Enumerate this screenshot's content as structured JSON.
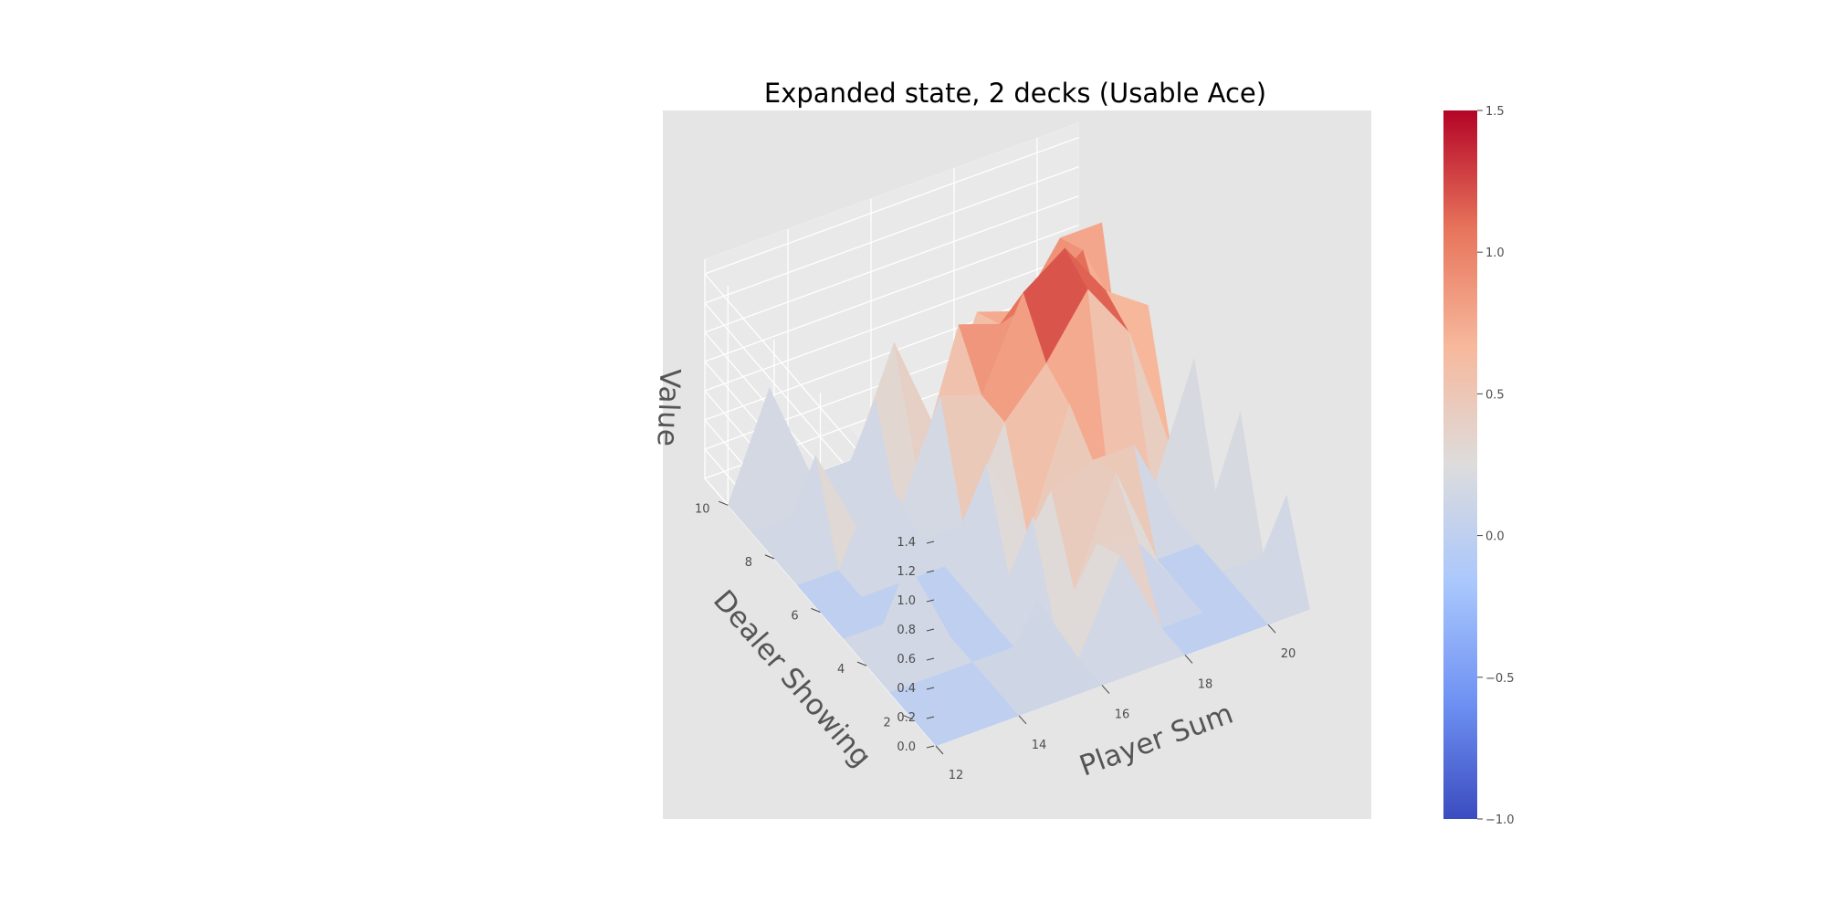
{
  "chart_data": {
    "type": "surface3d",
    "title": "Expanded state, 2 decks (Usable Ace)",
    "xlabel": "Player Sum",
    "ylabel": "Dealer Showing",
    "zlabel": "Value",
    "x_ticks": [
      "12",
      "14",
      "16",
      "18",
      "20"
    ],
    "y_ticks": [
      "2",
      "4",
      "6",
      "8",
      "10"
    ],
    "z_ticks": [
      "0.0",
      "0.2",
      "0.4",
      "0.6",
      "0.8",
      "1.0",
      "1.2",
      "1.4"
    ],
    "xlim": [
      12,
      21
    ],
    "ylim": [
      1,
      11
    ],
    "zlim": [
      0,
      1.5
    ],
    "grid": true,
    "colormap": "coolwarm",
    "colorbar": {
      "vmin": -1.0,
      "vmax": 1.5,
      "ticks": [
        "−1.0",
        "−0.5",
        "0.0",
        "0.5",
        "1.0",
        "1.5"
      ],
      "colors": [
        "#3b4cc0",
        "#6f92f3",
        "#aac7fd",
        "#dddcdc",
        "#f7b89c",
        "#e7745b",
        "#b40426"
      ]
    },
    "x": [
      12,
      13,
      14,
      15,
      16,
      17,
      18,
      19,
      20,
      21
    ],
    "y": [
      1,
      2,
      3,
      4,
      5,
      6,
      7,
      8,
      9,
      10
    ],
    "z": [
      [
        0,
        0,
        0,
        0,
        0,
        0,
        0,
        0,
        0,
        0
      ],
      [
        0,
        0,
        0,
        0.5,
        0,
        0.6,
        0,
        0,
        0,
        0.6
      ],
      [
        0,
        0,
        0,
        0,
        0,
        0.5,
        0.4,
        0,
        0,
        0
      ],
      [
        0,
        0.6,
        0,
        0,
        0.6,
        0,
        0.7,
        0,
        0,
        0.8
      ],
      [
        0,
        0,
        0,
        0,
        0,
        0.5,
        0.6,
        0.6,
        0,
        0
      ],
      [
        0,
        0,
        0,
        0,
        0.6,
        0,
        0.8,
        0,
        0,
        0.8
      ],
      [
        0,
        0,
        0.6,
        0,
        0,
        0.6,
        0.9,
        1.3,
        0.9,
        0
      ],
      [
        0,
        0.6,
        0,
        0,
        0.7,
        0.6,
        1.2,
        1.4,
        1.0,
        0.8
      ],
      [
        0,
        0,
        0,
        0.6,
        0,
        0.9,
        0.8,
        0.9,
        1.1,
        0
      ],
      [
        0,
        0.7,
        0,
        0,
        0.7,
        0,
        0.7,
        0.6,
        1.0,
        1.0
      ]
    ]
  }
}
